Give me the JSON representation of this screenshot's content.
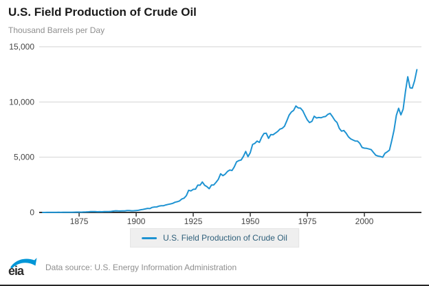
{
  "header": {
    "title": "U.S. Field Production of Crude Oil",
    "units": "Thousand Barrels per Day"
  },
  "legend": {
    "label": "U.S. Field Production of Crude Oil"
  },
  "footer": {
    "logo_text": "eia",
    "source": "Data source: U.S. Energy Information Administration"
  },
  "colors": {
    "line": "#1e93d2",
    "grid": "#e0e0e0",
    "axis": "#333333",
    "tick_label": "#444444",
    "legend_bg": "#efefef",
    "legend_text": "#2e5f7a",
    "logo_blue": "#0096d7"
  },
  "chart_data": {
    "type": "line",
    "title": "U.S. Field Production of Crude Oil",
    "xlabel": "",
    "ylabel": "Thousand Barrels per Day",
    "xlim": [
      1857.5,
      2025
    ],
    "ylim": [
      0,
      15000
    ],
    "xticks": [
      1875,
      1900,
      1925,
      1950,
      1975,
      2000
    ],
    "ytick_values": [
      0,
      5000,
      10000,
      15000
    ],
    "ytick_labels": [
      "0",
      "5,000",
      "10,000",
      "15,000"
    ],
    "grid": "horizontal",
    "legend_position": "bottom",
    "series": [
      {
        "name": "U.S. Field Production of Crude Oil",
        "x_start": 1859,
        "x_step": 1,
        "x_end": 2023,
        "values": [
          0,
          1,
          6,
          8,
          7,
          6,
          7,
          10,
          9,
          10,
          12,
          14,
          14,
          17,
          27,
          30,
          33,
          25,
          36,
          42,
          54,
          72,
          76,
          83,
          64,
          66,
          60,
          77,
          77,
          75,
          96,
          126,
          149,
          137,
          133,
          135,
          145,
          167,
          166,
          152,
          157,
          174,
          190,
          243,
          275,
          320,
          369,
          347,
          455,
          489,
          501,
          574,
          604,
          609,
          679,
          728,
          770,
          822,
          919,
          974,
          1037,
          1221,
          1294,
          1527,
          2007,
          1951,
          2092,
          2113,
          2468,
          2463,
          2760,
          2460,
          2332,
          2145,
          2481,
          2488,
          2730,
          3001,
          3500,
          3327,
          3464,
          3707,
          3842,
          3799,
          4125,
          4584,
          4695,
          4751,
          5088,
          5520,
          5046,
          5407,
          6158,
          6256,
          6458,
          6342,
          6807,
          7151,
          7170,
          6710,
          7054,
          7035,
          7183,
          7332,
          7542,
          7614,
          7804,
          8295,
          8810,
          9096,
          9238,
          9637,
          9463,
          9441,
          9208,
          8774,
          8375,
          8132,
          8245,
          8707,
          8552,
          8597,
          8572,
          8649,
          8688,
          8879,
          8971,
          8680,
          8349,
          8140,
          7613,
          7355,
          7417,
          7171,
          6847,
          6662,
          6560,
          6465,
          6452,
          6252,
          5881,
          5822,
          5801,
          5746,
          5681,
          5419,
          5178,
          5102,
          5064,
          5000,
          5353,
          5482,
          5645,
          6497,
          7468,
          8789,
          9431,
          8831,
          9352,
          10964,
          12289,
          11283,
          11254,
          11911,
          12927
        ]
      }
    ]
  }
}
